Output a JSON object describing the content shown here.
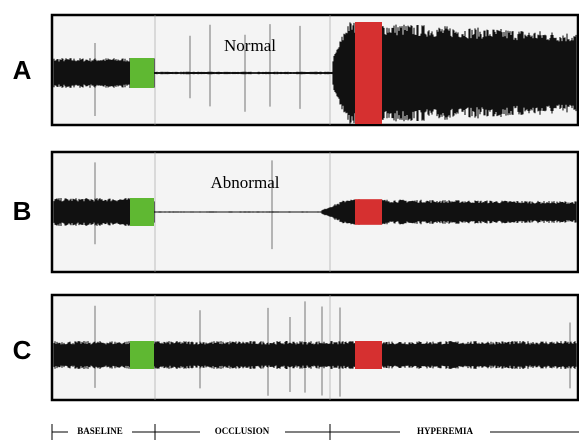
{
  "panels": [
    {
      "label": "A",
      "annotation": "Normal"
    },
    {
      "label": "B",
      "annotation": "Abnormal"
    },
    {
      "label": "C"
    }
  ],
  "phases": [
    "BASELINE",
    "OCCLUSION",
    "HYPEREMIA"
  ]
}
